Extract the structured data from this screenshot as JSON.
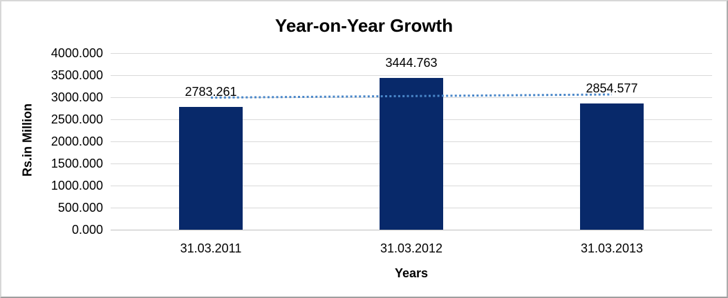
{
  "chart_data": {
    "type": "bar",
    "title": "Year-on-Year Growth",
    "xlabel": "Years",
    "ylabel": "Rs.in Million",
    "categories": [
      "31.03.2011",
      "31.03.2012",
      "31.03.2013"
    ],
    "values": [
      2783.261,
      3444.763,
      2854.577
    ],
    "data_labels": [
      "2783.261",
      "3444.763",
      "2854.577"
    ],
    "yticks": [
      {
        "value": 0,
        "label": "0.000"
      },
      {
        "value": 500,
        "label": "500.000"
      },
      {
        "value": 1000,
        "label": "1000.000"
      },
      {
        "value": 1500,
        "label": "1500.000"
      },
      {
        "value": 2000,
        "label": "2000.000"
      },
      {
        "value": 2500,
        "label": "2500.000"
      },
      {
        "value": 3000,
        "label": "3000.000"
      },
      {
        "value": 3500,
        "label": "3500.000"
      },
      {
        "value": 4000,
        "label": "4000.000"
      }
    ],
    "ylim": [
      0,
      4000
    ],
    "grid": true,
    "legend": "none",
    "trendline": {
      "type": "linear",
      "style": "dotted",
      "start_value": 2991.9,
      "end_value": 3063.2
    },
    "colors": {
      "bar": "#08296a",
      "trendline": "#4a87c9",
      "gridline": "#d9d9d9",
      "axis_line": "#bfbfbf",
      "text": "#000000"
    }
  }
}
